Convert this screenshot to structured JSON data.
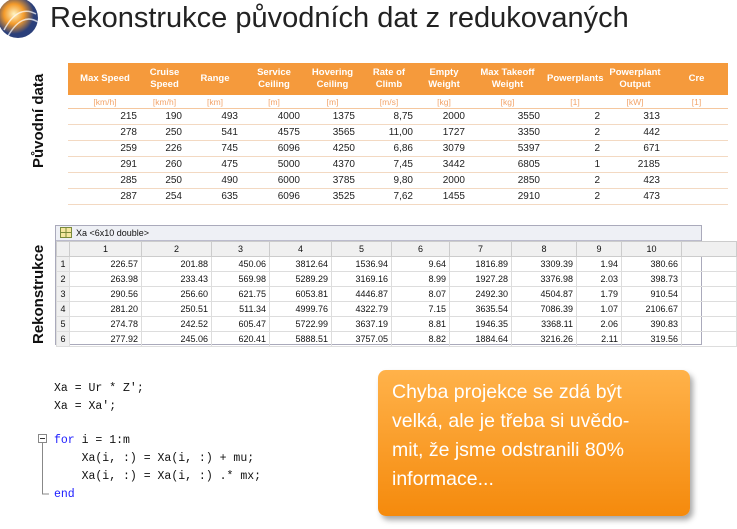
{
  "title": "Rekonstrukce původních dat z redukovaných",
  "labels": {
    "original": "Původní data",
    "reconstruction": "Rekonstrukce"
  },
  "original_table": {
    "headers": [
      "Max Speed",
      "Cruise Speed",
      "Range",
      "Service Ceiling",
      "Hovering Ceiling",
      "Rate of Climb",
      "Empty Weight",
      "Max Takeoff Weight",
      "Powerplants",
      "Powerplant Output",
      "Cre"
    ],
    "units": [
      "[km/h]",
      "[km/h]",
      "[km]",
      "[m]",
      "[m]",
      "[m/s]",
      "[kg]",
      "[kg]",
      "[1]",
      "[kW]",
      "[1]"
    ],
    "rows": [
      [
        "215",
        "190",
        "493",
        "4000",
        "1375",
        "8,75",
        "2000",
        "3550",
        "2",
        "313"
      ],
      [
        "278",
        "250",
        "541",
        "4575",
        "3565",
        "11,00",
        "1727",
        "3350",
        "2",
        "442"
      ],
      [
        "259",
        "226",
        "745",
        "6096",
        "4250",
        "6,86",
        "3079",
        "5397",
        "2",
        "671"
      ],
      [
        "291",
        "260",
        "475",
        "5000",
        "4370",
        "7,45",
        "3442",
        "6805",
        "1",
        "2185"
      ],
      [
        "285",
        "250",
        "490",
        "6000",
        "3785",
        "9,80",
        "2000",
        "2850",
        "2",
        "423"
      ],
      [
        "287",
        "254",
        "635",
        "6096",
        "3525",
        "7,62",
        "1455",
        "2910",
        "2",
        "473"
      ]
    ]
  },
  "matrix": {
    "title": "Xa <6x10 double>",
    "columns": [
      "1",
      "2",
      "3",
      "4",
      "5",
      "6",
      "7",
      "8",
      "9",
      "10"
    ],
    "row_numbers": [
      "1",
      "2",
      "3",
      "4",
      "5",
      "6"
    ],
    "rows": [
      [
        "226.57",
        "201.88",
        "450.06",
        "3812.64",
        "1536.94",
        "9.64",
        "1816.89",
        "3309.39",
        "1.94",
        "380.66"
      ],
      [
        "263.98",
        "233.43",
        "569.98",
        "5289.29",
        "3169.16",
        "8.99",
        "1927.28",
        "3376.98",
        "2.03",
        "398.73"
      ],
      [
        "290.56",
        "256.60",
        "621.75",
        "6053.81",
        "4446.87",
        "8.07",
        "2492.30",
        "4504.87",
        "1.79",
        "910.54"
      ],
      [
        "281.20",
        "250.51",
        "511.34",
        "4999.76",
        "4322.79",
        "7.15",
        "3635.54",
        "7086.39",
        "1.07",
        "2106.67"
      ],
      [
        "274.78",
        "242.52",
        "605.47",
        "5722.99",
        "3637.19",
        "8.81",
        "1946.35",
        "3368.11",
        "2.06",
        "390.83"
      ],
      [
        "277.92",
        "245.06",
        "620.41",
        "5888.51",
        "3757.05",
        "8.82",
        "1884.64",
        "3216.26",
        "2.11",
        "319.56"
      ]
    ]
  },
  "code": {
    "lines": [
      {
        "text": "Xa = Ur * Z';"
      },
      {
        "text": "Xa = Xa';"
      },
      {
        "keyword": "for",
        "text": " i = 1:m"
      },
      {
        "text": "    Xa(i, :) = Xa(i, :) + mu;"
      },
      {
        "text": "    Xa(i, :) = Xa(i, :) .* mx;"
      },
      {
        "keyword": "end"
      }
    ]
  },
  "callout": {
    "lines": [
      "Chyba projekce se zdá být",
      "velká, ale je třeba si uvědo-",
      "mit, že jsme odstranili 80%",
      "informace..."
    ]
  }
}
